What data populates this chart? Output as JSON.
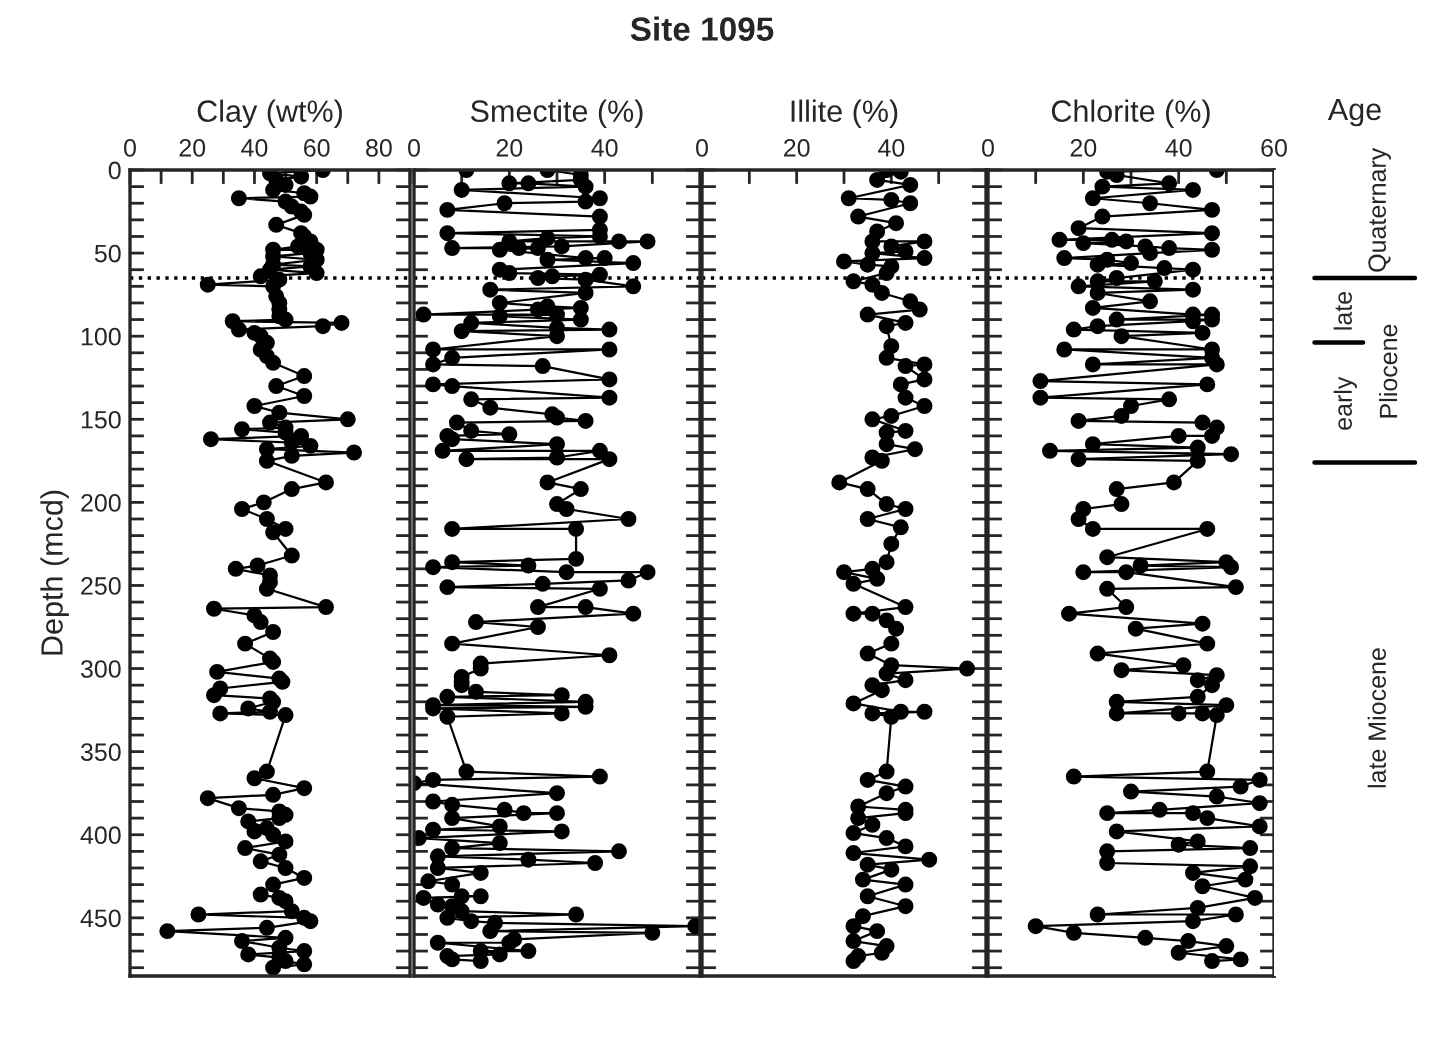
{
  "chart_data": [
    {
      "type": "line",
      "annotations": [
        "Site 1095"
      ],
      "xlabel": "Clay (wt%)",
      "ylabel": "Depth (mcd)",
      "orientation": "horizontal",
      "marker": "circle",
      "line_style": "solid",
      "xlim": [
        0,
        90
      ],
      "xticks": [
        0,
        {
          "value": 10,
          "label": null
        },
        20,
        {
          "value": 30,
          "label": null
        },
        40,
        {
          "value": 50,
          "label": null
        },
        60,
        {
          "value": 70,
          "label": null
        },
        80,
        {
          "value": 90,
          "label": null
        }
      ],
      "ylim": [
        485,
        0
      ],
      "yticks": [
        0,
        {
          "value": 10,
          "label": null
        },
        {
          "value": 20,
          "label": null
        },
        {
          "value": 30,
          "label": null
        },
        {
          "value": 40,
          "label": null
        },
        50,
        {
          "value": 60,
          "label": null
        },
        {
          "value": 70,
          "label": null
        },
        {
          "value": 80,
          "label": null
        },
        {
          "value": 90,
          "label": null
        },
        100,
        {
          "value": 110,
          "label": null
        },
        {
          "value": 120,
          "label": null
        },
        {
          "value": 130,
          "label": null
        },
        {
          "value": 140,
          "label": null
        },
        150,
        {
          "value": 160,
          "label": null
        },
        {
          "value": 170,
          "label": null
        },
        {
          "value": 180,
          "label": null
        },
        {
          "value": 190,
          "label": null
        },
        200,
        {
          "value": 210,
          "label": null
        },
        {
          "value": 220,
          "label": null
        },
        {
          "value": 230,
          "label": null
        },
        {
          "value": 240,
          "label": null
        },
        250,
        {
          "value": 260,
          "label": null
        },
        {
          "value": 270,
          "label": null
        },
        {
          "value": 280,
          "label": null
        },
        {
          "value": 290,
          "label": null
        },
        300,
        {
          "value": 310,
          "label": null
        },
        {
          "value": 320,
          "label": null
        },
        {
          "value": 330,
          "label": null
        },
        {
          "value": 340,
          "label": null
        },
        350,
        {
          "value": 360,
          "label": null
        },
        {
          "value": 370,
          "label": null
        },
        {
          "value": 380,
          "label": null
        },
        {
          "value": 390,
          "label": null
        },
        400,
        {
          "value": 410,
          "label": null
        },
        {
          "value": 420,
          "label": null
        },
        {
          "value": 430,
          "label": null
        },
        {
          "value": 440,
          "label": null
        },
        450,
        {
          "value": 460,
          "label": null
        },
        {
          "value": 470,
          "label": null
        },
        {
          "value": 480,
          "label": null
        }
      ],
      "ref_lines": [
        {
          "axis": "y",
          "value": 65,
          "line_style": "dotted",
          "color": "#000000"
        }
      ],
      "x": [
        0,
        2,
        4,
        6,
        9,
        12,
        14,
        16,
        17,
        19,
        22,
        25,
        27,
        33,
        38,
        40,
        43,
        46,
        48,
        48,
        50,
        52,
        54,
        57,
        58,
        60,
        62,
        64,
        66,
        69,
        70,
        76,
        80,
        84,
        88,
        90,
        91,
        92,
        94,
        96,
        98,
        100,
        104,
        108,
        112,
        116,
        124,
        130,
        136,
        142,
        146,
        150,
        152,
        155,
        156,
        158,
        160,
        162,
        164,
        166,
        168,
        170,
        172,
        175,
        188,
        192,
        200,
        204,
        210,
        216,
        218,
        232,
        238,
        240,
        244,
        248,
        252,
        263,
        264,
        268,
        272,
        278,
        285,
        294,
        296,
        302,
        306,
        308,
        312,
        316,
        318,
        320,
        324,
        326,
        327,
        328,
        362,
        366,
        372,
        376,
        378,
        384,
        386,
        388,
        390,
        392,
        396,
        398,
        400,
        404,
        408,
        412,
        416,
        420,
        426,
        430,
        436,
        438,
        440,
        446,
        448,
        450,
        452,
        456,
        458,
        462,
        464,
        468,
        470,
        472,
        474,
        476,
        478,
        480
      ],
      "series": [
        {
          "color": "#000000",
          "values": [
            62,
            45,
            55,
            47,
            50,
            46,
            56,
            58,
            35,
            50,
            52,
            55,
            56,
            47,
            55,
            56,
            58,
            54,
            46,
            60,
            58,
            46,
            60,
            46,
            58,
            45,
            60,
            42,
            48,
            25,
            46,
            47,
            48,
            48,
            48,
            50,
            33,
            68,
            62,
            35,
            40,
            42,
            44,
            42,
            44,
            46,
            56,
            47,
            56,
            40,
            48,
            70,
            45,
            50,
            36,
            50,
            55,
            26,
            52,
            58,
            44,
            72,
            52,
            44,
            63,
            52,
            43,
            36,
            44,
            50,
            46,
            52,
            41,
            34,
            45,
            45,
            44,
            63,
            27,
            40,
            42,
            46,
            37,
            45,
            46,
            28,
            48,
            49,
            29,
            27,
            45,
            46,
            38,
            45,
            29,
            50,
            44,
            40,
            56,
            46,
            25,
            35,
            48,
            50,
            48,
            38,
            44,
            40,
            46,
            50,
            37,
            48,
            42,
            50,
            56,
            46,
            42,
            48,
            50,
            52,
            22,
            56,
            58,
            44,
            12,
            50,
            36,
            48,
            56,
            38,
            48,
            50,
            56,
            46
          ]
        }
      ]
    },
    {
      "type": "line",
      "xlabel": "Smectite (%)",
      "orientation": "horizontal",
      "marker": "circle",
      "line_style": "solid",
      "tick_labels": "x",
      "xlim": [
        0,
        60
      ],
      "xticks": [
        0,
        {
          "value": 10,
          "label": null
        },
        20,
        {
          "value": 30,
          "label": null
        },
        40,
        {
          "value": 50,
          "label": null
        }
      ],
      "ylim": [
        485,
        0
      ],
      "yticks": [
        {
          "value": 0,
          "label": null
        },
        {
          "value": 10,
          "label": null
        },
        {
          "value": 20,
          "label": null
        },
        {
          "value": 30,
          "label": null
        },
        {
          "value": 40,
          "label": null
        },
        {
          "value": 50,
          "label": null
        },
        {
          "value": 60,
          "label": null
        },
        {
          "value": 70,
          "label": null
        },
        {
          "value": 80,
          "label": null
        },
        {
          "value": 90,
          "label": null
        },
        {
          "value": 100,
          "label": null
        },
        {
          "value": 110,
          "label": null
        },
        {
          "value": 120,
          "label": null
        },
        {
          "value": 130,
          "label": null
        },
        {
          "value": 140,
          "label": null
        },
        {
          "value": 150,
          "label": null
        },
        {
          "value": 160,
          "label": null
        },
        {
          "value": 170,
          "label": null
        },
        {
          "value": 180,
          "label": null
        },
        {
          "value": 190,
          "label": null
        },
        {
          "value": 200,
          "label": null
        },
        {
          "value": 210,
          "label": null
        },
        {
          "value": 220,
          "label": null
        },
        {
          "value": 230,
          "label": null
        },
        {
          "value": 240,
          "label": null
        },
        {
          "value": 250,
          "label": null
        },
        {
          "value": 260,
          "label": null
        },
        {
          "value": 270,
          "label": null
        },
        {
          "value": 280,
          "label": null
        },
        {
          "value": 290,
          "label": null
        },
        {
          "value": 300,
          "label": null
        },
        {
          "value": 310,
          "label": null
        },
        {
          "value": 320,
          "label": null
        },
        {
          "value": 330,
          "label": null
        },
        {
          "value": 340,
          "label": null
        },
        {
          "value": 350,
          "label": null
        },
        {
          "value": 360,
          "label": null
        },
        {
          "value": 370,
          "label": null
        },
        {
          "value": 380,
          "label": null
        },
        {
          "value": 390,
          "label": null
        },
        {
          "value": 400,
          "label": null
        },
        {
          "value": 410,
          "label": null
        },
        {
          "value": 420,
          "label": null
        },
        {
          "value": 430,
          "label": null
        },
        {
          "value": 440,
          "label": null
        },
        {
          "value": 450,
          "label": null
        },
        {
          "value": 460,
          "label": null
        },
        {
          "value": 470,
          "label": null
        },
        {
          "value": 480,
          "label": null
        }
      ],
      "ref_lines": [
        {
          "axis": "y",
          "value": 65,
          "line_style": "dotted",
          "color": "#000000"
        }
      ],
      "x": [
        0,
        0,
        3,
        6,
        8,
        8,
        10,
        12,
        17,
        19,
        20,
        24,
        28,
        36,
        38,
        40,
        41,
        43,
        43,
        43,
        46,
        47,
        47,
        47,
        48,
        53,
        53,
        54,
        56,
        60,
        62,
        63,
        64,
        65,
        66,
        70,
        72,
        74,
        80,
        82,
        83,
        84,
        87,
        87,
        88,
        90,
        92,
        95,
        96,
        97,
        100,
        108,
        108,
        113,
        117,
        118,
        126,
        129,
        130,
        137,
        138,
        143,
        147,
        149,
        151,
        152,
        157,
        159,
        160,
        162,
        165,
        169,
        169,
        173,
        174,
        174,
        188,
        192,
        201,
        204,
        210,
        216,
        216,
        234,
        236,
        238,
        239,
        242,
        242,
        247,
        249,
        251,
        252,
        263,
        263,
        267,
        272,
        275,
        285,
        292,
        297,
        300,
        305,
        308,
        310,
        314,
        316,
        317,
        320,
        322,
        323,
        324,
        327,
        329,
        362,
        365,
        367,
        369,
        375,
        380,
        382,
        385,
        387,
        387,
        390,
        395,
        397,
        398,
        402,
        405,
        408,
        410,
        413,
        415,
        417,
        420,
        423,
        428,
        430,
        437,
        437,
        438,
        442,
        443,
        446,
        448,
        450,
        452,
        453,
        455,
        458,
        459,
        463,
        465,
        465,
        470,
        470,
        472,
        473,
        475,
        476
      ],
      "series": [
        {
          "color": "#000000",
          "values": [
            11,
            28,
            35,
            35,
            20,
            24,
            36,
            10,
            39,
            36,
            19,
            7,
            39,
            39,
            7,
            39,
            28,
            20,
            43,
            49,
            31,
            8,
            22,
            26,
            18,
            36,
            40,
            28,
            46,
            18,
            20,
            39,
            29,
            26,
            36,
            46,
            16,
            36,
            18,
            28,
            35,
            26,
            2,
            30,
            18,
            35,
            12,
            30,
            41,
            10,
            30,
            4,
            41,
            8,
            4,
            27,
            41,
            4,
            8,
            41,
            12,
            16,
            29,
            30,
            36,
            9,
            12,
            20,
            7,
            8,
            30,
            6,
            39,
            30,
            11,
            41,
            28,
            35,
            30,
            32,
            45,
            8,
            34,
            34,
            8,
            24,
            4,
            32,
            49,
            45,
            27,
            7,
            39,
            26,
            36,
            46,
            13,
            26,
            8,
            41,
            14,
            14,
            10,
            10,
            10,
            13,
            31,
            7,
            36,
            4,
            36,
            4,
            31,
            7,
            11,
            39,
            4,
            0,
            30,
            4,
            8,
            19,
            23,
            30,
            8,
            18,
            4,
            31,
            1,
            18,
            8,
            43,
            5,
            24,
            38,
            5,
            14,
            3,
            8,
            10,
            14,
            2,
            5,
            8,
            10,
            34,
            7,
            12,
            17,
            59,
            16,
            50,
            21,
            20,
            5,
            24,
            14,
            18,
            7,
            8,
            14
          ]
        }
      ]
    },
    {
      "type": "line",
      "xlabel": "Illite (%)",
      "orientation": "horizontal",
      "marker": "circle",
      "line_style": "solid",
      "tick_labels": "x",
      "xlim": [
        0,
        60
      ],
      "xticks": [
        0,
        {
          "value": 10,
          "label": null
        },
        20,
        {
          "value": 30,
          "label": null
        },
        40,
        {
          "value": 50,
          "label": null
        }
      ],
      "ylim": [
        485,
        0
      ],
      "yticks": [
        {
          "value": 0,
          "label": null
        },
        {
          "value": 10,
          "label": null
        },
        {
          "value": 20,
          "label": null
        },
        {
          "value": 30,
          "label": null
        },
        {
          "value": 40,
          "label": null
        },
        {
          "value": 50,
          "label": null
        },
        {
          "value": 60,
          "label": null
        },
        {
          "value": 70,
          "label": null
        },
        {
          "value": 80,
          "label": null
        },
        {
          "value": 90,
          "label": null
        },
        {
          "value": 100,
          "label": null
        },
        {
          "value": 110,
          "label": null
        },
        {
          "value": 120,
          "label": null
        },
        {
          "value": 130,
          "label": null
        },
        {
          "value": 140,
          "label": null
        },
        {
          "value": 150,
          "label": null
        },
        {
          "value": 160,
          "label": null
        },
        {
          "value": 170,
          "label": null
        },
        {
          "value": 180,
          "label": null
        },
        {
          "value": 190,
          "label": null
        },
        {
          "value": 200,
          "label": null
        },
        {
          "value": 210,
          "label": null
        },
        {
          "value": 220,
          "label": null
        },
        {
          "value": 230,
          "label": null
        },
        {
          "value": 240,
          "label": null
        },
        {
          "value": 250,
          "label": null
        },
        {
          "value": 260,
          "label": null
        },
        {
          "value": 270,
          "label": null
        },
        {
          "value": 280,
          "label": null
        },
        {
          "value": 290,
          "label": null
        },
        {
          "value": 300,
          "label": null
        },
        {
          "value": 310,
          "label": null
        },
        {
          "value": 320,
          "label": null
        },
        {
          "value": 330,
          "label": null
        },
        {
          "value": 340,
          "label": null
        },
        {
          "value": 350,
          "label": null
        },
        {
          "value": 360,
          "label": null
        },
        {
          "value": 370,
          "label": null
        },
        {
          "value": 380,
          "label": null
        },
        {
          "value": 390,
          "label": null
        },
        {
          "value": 400,
          "label": null
        },
        {
          "value": 410,
          "label": null
        },
        {
          "value": 420,
          "label": null
        },
        {
          "value": 430,
          "label": null
        },
        {
          "value": 440,
          "label": null
        },
        {
          "value": 450,
          "label": null
        },
        {
          "value": 460,
          "label": null
        },
        {
          "value": 470,
          "label": null
        },
        {
          "value": 480,
          "label": null
        }
      ],
      "ref_lines": [
        {
          "axis": "y",
          "value": 65,
          "line_style": "dotted",
          "color": "#000000"
        }
      ],
      "x": [
        0,
        1,
        6,
        9,
        17,
        18,
        20,
        28,
        32,
        37,
        43,
        43,
        46,
        49,
        50,
        53,
        55,
        57,
        58,
        62,
        67,
        69,
        74,
        79,
        84,
        87,
        92,
        94,
        106,
        113,
        117,
        118,
        126,
        129,
        137,
        142,
        148,
        150,
        157,
        158,
        165,
        168,
        173,
        175,
        188,
        192,
        201,
        204,
        210,
        215,
        225,
        236,
        240,
        242,
        246,
        249,
        263,
        267,
        267,
        271,
        276,
        285,
        291,
        298,
        300,
        303,
        307,
        310,
        313,
        321,
        326,
        326,
        327,
        329,
        362,
        367,
        371,
        375,
        383,
        385,
        387,
        390,
        394,
        399,
        402,
        407,
        411,
        415,
        418,
        421,
        427,
        430,
        437,
        443,
        449,
        455,
        458,
        464,
        467,
        471,
        473,
        476
      ],
      "series": [
        {
          "color": "#000000",
          "values": [
            39,
            42,
            37,
            44,
            31,
            40,
            44,
            33,
            41,
            37,
            36,
            47,
            40,
            43,
            36,
            47,
            30,
            35,
            40,
            39,
            32,
            36,
            38,
            44,
            46,
            35,
            43,
            39,
            40,
            39,
            47,
            43,
            47,
            42,
            43,
            47,
            40,
            36,
            43,
            39,
            39,
            45,
            36,
            38,
            29,
            35,
            39,
            43,
            35,
            42,
            40,
            39,
            36,
            30,
            37,
            32,
            43,
            32,
            36,
            39,
            41,
            40,
            35,
            40,
            56,
            39,
            43,
            36,
            38,
            32,
            42,
            47,
            36,
            40,
            39,
            35,
            43,
            39,
            33,
            43,
            43,
            33,
            36,
            32,
            39,
            43,
            32,
            48,
            35,
            40,
            34,
            43,
            35,
            43,
            34,
            32,
            37,
            32,
            39,
            38,
            33,
            32
          ]
        }
      ]
    },
    {
      "type": "line",
      "xlabel": "Chlorite (%)",
      "orientation": "horizontal",
      "marker": "circle",
      "line_style": "solid",
      "tick_labels": "x",
      "xlim": [
        0,
        60
      ],
      "xticks": [
        0,
        {
          "value": 10,
          "label": null
        },
        20,
        {
          "value": 30,
          "label": null
        },
        40,
        {
          "value": 50,
          "label": null
        },
        60
      ],
      "ylim": [
        485,
        0
      ],
      "yticks": [
        {
          "value": 0,
          "label": null
        },
        {
          "value": 10,
          "label": null
        },
        {
          "value": 20,
          "label": null
        },
        {
          "value": 30,
          "label": null
        },
        {
          "value": 40,
          "label": null
        },
        {
          "value": 50,
          "label": null
        },
        {
          "value": 60,
          "label": null
        },
        {
          "value": 70,
          "label": null
        },
        {
          "value": 80,
          "label": null
        },
        {
          "value": 90,
          "label": null
        },
        {
          "value": 100,
          "label": null
        },
        {
          "value": 110,
          "label": null
        },
        {
          "value": 120,
          "label": null
        },
        {
          "value": 130,
          "label": null
        },
        {
          "value": 140,
          "label": null
        },
        {
          "value": 150,
          "label": null
        },
        {
          "value": 160,
          "label": null
        },
        {
          "value": 170,
          "label": null
        },
        {
          "value": 180,
          "label": null
        },
        {
          "value": 190,
          "label": null
        },
        {
          "value": 200,
          "label": null
        },
        {
          "value": 210,
          "label": null
        },
        {
          "value": 220,
          "label": null
        },
        {
          "value": 230,
          "label": null
        },
        {
          "value": 240,
          "label": null
        },
        {
          "value": 250,
          "label": null
        },
        {
          "value": 260,
          "label": null
        },
        {
          "value": 270,
          "label": null
        },
        {
          "value": 280,
          "label": null
        },
        {
          "value": 290,
          "label": null
        },
        {
          "value": 300,
          "label": null
        },
        {
          "value": 310,
          "label": null
        },
        {
          "value": 320,
          "label": null
        },
        {
          "value": 330,
          "label": null
        },
        {
          "value": 340,
          "label": null
        },
        {
          "value": 350,
          "label": null
        },
        {
          "value": 360,
          "label": null
        },
        {
          "value": 370,
          "label": null
        },
        {
          "value": 380,
          "label": null
        },
        {
          "value": 390,
          "label": null
        },
        {
          "value": 400,
          "label": null
        },
        {
          "value": 410,
          "label": null
        },
        {
          "value": 420,
          "label": null
        },
        {
          "value": 430,
          "label": null
        },
        {
          "value": 440,
          "label": null
        },
        {
          "value": 450,
          "label": null
        },
        {
          "value": 460,
          "label": null
        },
        {
          "value": 470,
          "label": null
        },
        {
          "value": 480,
          "label": null
        }
      ],
      "ref_lines": [
        {
          "axis": "y",
          "value": 65,
          "line_style": "dotted",
          "color": "#000000"
        }
      ],
      "x": [
        0,
        1,
        3,
        8,
        10,
        12,
        17,
        20,
        24,
        28,
        35,
        38,
        42,
        42,
        43,
        44,
        46,
        47,
        48,
        50,
        53,
        54,
        56,
        57,
        59,
        60,
        65,
        67,
        67,
        70,
        72,
        74,
        79,
        83,
        87,
        87,
        90,
        90,
        91,
        94,
        96,
        98,
        100,
        108,
        108,
        113,
        117,
        117,
        127,
        129,
        137,
        138,
        142,
        148,
        151,
        152,
        155,
        160,
        160,
        165,
        167,
        169,
        171,
        174,
        175,
        188,
        192,
        201,
        204,
        210,
        216,
        216,
        233,
        236,
        238,
        239,
        242,
        242,
        251,
        252,
        263,
        267,
        273,
        276,
        285,
        291,
        298,
        301,
        304,
        307,
        310,
        317,
        320,
        322,
        327,
        327,
        327,
        328,
        362,
        365,
        367,
        371,
        374,
        377,
        381,
        385,
        387,
        387,
        390,
        395,
        398,
        404,
        406,
        408,
        410,
        417,
        419,
        423,
        427,
        431,
        438,
        444,
        448,
        448,
        452,
        455,
        459,
        462,
        464,
        467,
        471,
        475,
        476
      ],
      "series": [
        {
          "color": "#000000",
          "values": [
            48,
            25,
            27,
            38,
            24,
            43,
            22,
            34,
            47,
            24,
            19,
            47,
            15,
            26,
            29,
            20,
            33,
            38,
            47,
            34,
            16,
            25,
            30,
            23,
            37,
            43,
            27,
            23,
            35,
            19,
            43,
            23,
            34,
            22,
            43,
            47,
            27,
            47,
            43,
            23,
            18,
            45,
            28,
            47,
            16,
            47,
            22,
            48,
            11,
            46,
            11,
            38,
            30,
            28,
            19,
            45,
            48,
            47,
            40,
            22,
            44,
            13,
            51,
            19,
            44,
            39,
            27,
            28,
            20,
            19,
            22,
            46,
            25,
            50,
            32,
            51,
            20,
            29,
            52,
            25,
            29,
            17,
            45,
            31,
            46,
            23,
            41,
            28,
            48,
            44,
            47,
            44,
            27,
            50,
            27,
            40,
            45,
            48,
            46,
            18,
            57,
            53,
            30,
            48,
            57,
            36,
            25,
            43,
            46,
            57,
            27,
            44,
            40,
            55,
            25,
            25,
            55,
            43,
            54,
            45,
            56,
            44,
            23,
            52,
            43,
            10,
            18,
            33,
            42,
            50,
            40,
            53,
            47
          ]
        }
      ]
    },
    {
      "type": "other",
      "xlabel": "Age",
      "annotations": [
        "Quaternary",
        "late",
        "early",
        "Pliocene",
        "late Miocene"
      ]
    }
  ]
}
